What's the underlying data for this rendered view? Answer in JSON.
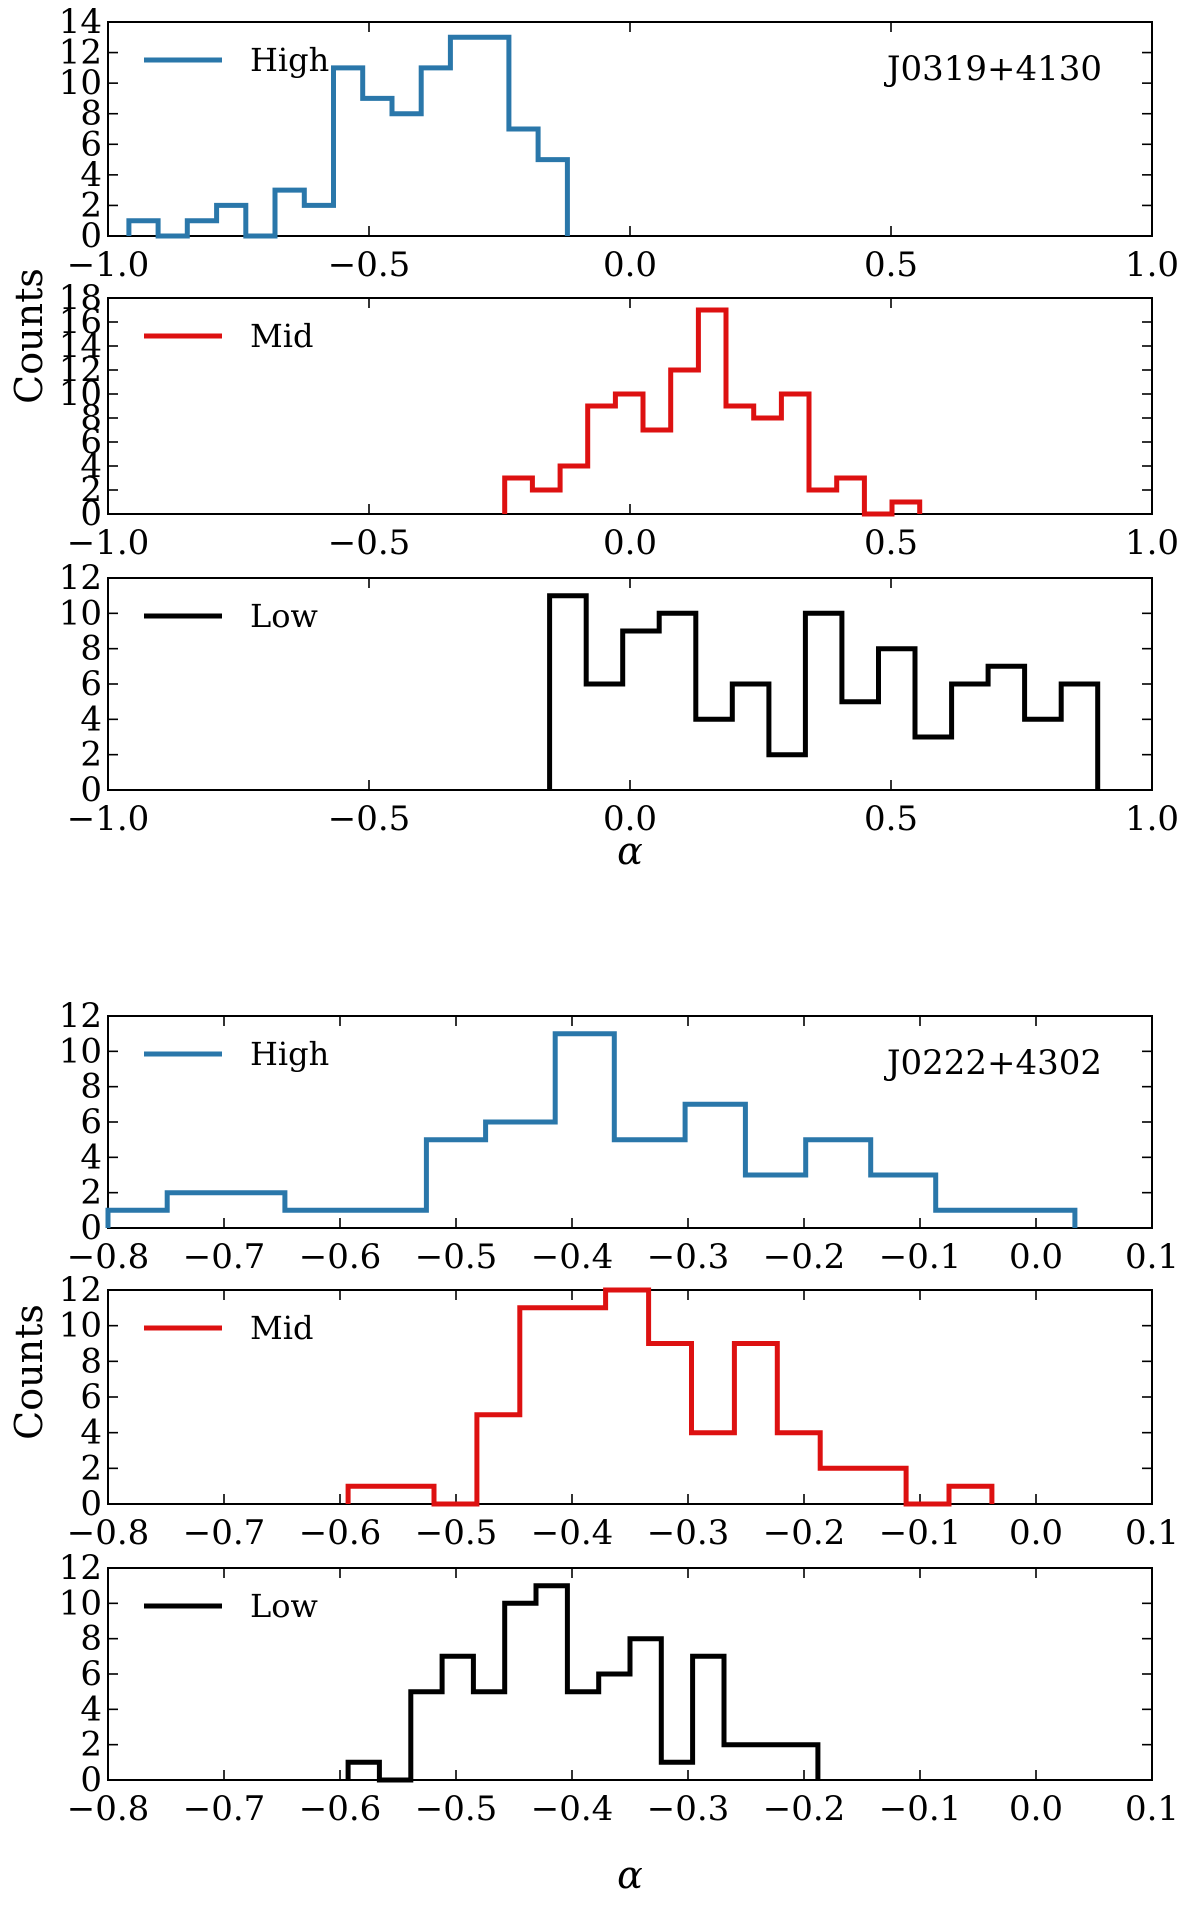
{
  "chart_data": [
    {
      "type": "histogram",
      "group": "J0319+4130",
      "annotation": "J0319+4130",
      "xlabel": "α",
      "ylabel": "Counts",
      "panels": [
        {
          "name": "High",
          "color": "#2a77aa",
          "xlim": [
            -1.0,
            1.0
          ],
          "ylim": [
            0,
            14
          ],
          "xticks": [
            -1.0,
            -0.5,
            0.0,
            0.5,
            1.0
          ],
          "xtick_labels": [
            "−1.0",
            "−0.5",
            "0.0",
            "0.5",
            "1.0"
          ],
          "yticks": [
            0,
            2,
            4,
            6,
            8,
            10,
            12,
            14
          ],
          "ytick_labels": [
            "0",
            "2",
            "4",
            "6",
            "8",
            "10",
            "12",
            "14"
          ],
          "bin_edges": [
            -0.96,
            -0.904,
            -0.848,
            -0.792,
            -0.736,
            -0.68,
            -0.624,
            -0.568,
            -0.512,
            -0.456,
            -0.4,
            -0.344,
            -0.288,
            -0.232,
            -0.176,
            -0.12
          ],
          "counts": [
            1,
            0,
            1,
            2,
            0,
            3,
            2,
            11,
            9,
            8,
            11,
            13,
            13,
            7,
            5
          ]
        },
        {
          "name": "Mid",
          "color": "#dd1111",
          "xlim": [
            -1.0,
            1.0
          ],
          "ylim": [
            0,
            18
          ],
          "xticks": [
            -1.0,
            -0.5,
            0.0,
            0.5,
            1.0
          ],
          "xtick_labels": [
            "−1.0",
            "−0.5",
            "0.0",
            "0.5",
            "1.0"
          ],
          "yticks": [
            0,
            2,
            4,
            6,
            8,
            10,
            12,
            14,
            16,
            18
          ],
          "ytick_labels": [
            "0",
            "2",
            "4",
            "6",
            "8",
            "10",
            "12",
            "14",
            "16",
            "18"
          ],
          "bin_edges": [
            -0.24,
            -0.187,
            -0.134,
            -0.081,
            -0.028,
            0.025,
            0.078,
            0.131,
            0.184,
            0.237,
            0.29,
            0.343,
            0.396,
            0.449,
            0.502,
            0.555
          ],
          "counts": [
            3,
            2,
            4,
            9,
            10,
            7,
            12,
            17,
            9,
            8,
            10,
            2,
            3,
            0,
            1
          ]
        },
        {
          "name": "Low",
          "color": "#000000",
          "xlim": [
            -1.0,
            1.0
          ],
          "ylim": [
            0,
            12
          ],
          "xticks": [
            -1.0,
            -0.5,
            0.0,
            0.5,
            1.0
          ],
          "xtick_labels": [
            "−1.0",
            "−0.5",
            "0.0",
            "0.5",
            "1.0"
          ],
          "yticks": [
            0,
            2,
            4,
            6,
            8,
            10,
            12
          ],
          "ytick_labels": [
            "0",
            "2",
            "4",
            "6",
            "8",
            "10",
            "12"
          ],
          "bin_edges": [
            -0.154,
            -0.084,
            -0.014,
            0.056,
            0.126,
            0.196,
            0.266,
            0.336,
            0.406,
            0.476,
            0.546,
            0.616,
            0.686,
            0.756,
            0.826,
            0.896
          ],
          "counts": [
            11,
            6,
            9,
            10,
            4,
            6,
            2,
            10,
            5,
            8,
            3,
            6,
            7,
            4,
            6
          ]
        }
      ]
    },
    {
      "type": "histogram",
      "group": "J0222+4302",
      "annotation": "J0222+4302",
      "xlabel": "α",
      "ylabel": "Counts",
      "panels": [
        {
          "name": "High",
          "color": "#2a77aa",
          "xlim": [
            -0.8,
            0.1
          ],
          "ylim": [
            0,
            12
          ],
          "xticks": [
            -0.8,
            -0.7,
            -0.6,
            -0.5,
            -0.4,
            -0.3,
            -0.2,
            -0.1,
            0.0,
            0.1
          ],
          "xtick_labels": [
            "−0.8",
            "−0.7",
            "−0.6",
            "−0.5",
            "−0.4",
            "−0.3",
            "−0.2",
            "−0.1",
            "0.0",
            "0.1"
          ],
          "yticks": [
            0,
            2,
            4,
            6,
            8,
            10,
            12
          ],
          "ytick_labels": [
            "0",
            "2",
            "4",
            "6",
            "8",
            "10",
            "12"
          ],
          "bin_edges": [
            -0.8,
            -0.749,
            -0.6985,
            -0.6475,
            -0.5965,
            -0.5255,
            -0.4745,
            -0.4145,
            -0.3635,
            -0.3025,
            -0.2505,
            -0.1985,
            -0.1425,
            -0.0865,
            0.0335
          ],
          "counts": [
            1,
            2,
            2,
            1,
            1,
            5,
            6,
            11,
            5,
            7,
            3,
            5,
            3,
            1
          ]
        },
        {
          "name": "Mid",
          "color": "#dd1111",
          "xlim": [
            -0.8,
            0.1
          ],
          "ylim": [
            0,
            12
          ],
          "xticks": [
            -0.8,
            -0.7,
            -0.6,
            -0.5,
            -0.4,
            -0.3,
            -0.2,
            -0.1,
            0.0,
            0.1
          ],
          "xtick_labels": [
            "−0.8",
            "−0.7",
            "−0.6",
            "−0.5",
            "−0.4",
            "−0.3",
            "−0.2",
            "−0.1",
            "0.0",
            "0.1"
          ],
          "yticks": [
            0,
            2,
            4,
            6,
            8,
            10,
            12
          ],
          "ytick_labels": [
            "0",
            "2",
            "4",
            "6",
            "8",
            "10",
            "12"
          ],
          "bin_edges": [
            -0.593,
            -0.556,
            -0.519,
            -0.482,
            -0.445,
            -0.408,
            -0.371,
            -0.334,
            -0.297,
            -0.26,
            -0.223,
            -0.186,
            -0.149,
            -0.112,
            -0.075,
            -0.038
          ],
          "counts": [
            1,
            1,
            0,
            5,
            11,
            11,
            12,
            9,
            4,
            9,
            4,
            2,
            2,
            0,
            1
          ]
        },
        {
          "name": "Low",
          "color": "#000000",
          "xlim": [
            -0.8,
            0.1
          ],
          "ylim": [
            0,
            12
          ],
          "xticks": [
            -0.8,
            -0.7,
            -0.6,
            -0.5,
            -0.4,
            -0.3,
            -0.2,
            -0.1,
            0.0,
            0.1
          ],
          "xtick_labels": [
            "−0.8",
            "−0.7",
            "−0.6",
            "−0.5",
            "−0.4",
            "−0.3",
            "−0.2",
            "−0.1",
            "0.0",
            "0.1"
          ],
          "yticks": [
            0,
            2,
            4,
            6,
            8,
            10,
            12
          ],
          "ytick_labels": [
            "0",
            "2",
            "4",
            "6",
            "8",
            "10",
            "12"
          ],
          "bin_edges": [
            -0.593,
            -0.566,
            -0.539,
            -0.512,
            -0.485,
            -0.458,
            -0.431,
            -0.404,
            -0.377,
            -0.35,
            -0.323,
            -0.296,
            -0.269,
            -0.242,
            -0.215,
            -0.188
          ],
          "counts": [
            1,
            0,
            5,
            7,
            5,
            10,
            11,
            5,
            6,
            8,
            1,
            7,
            2,
            2,
            2
          ]
        }
      ]
    }
  ]
}
